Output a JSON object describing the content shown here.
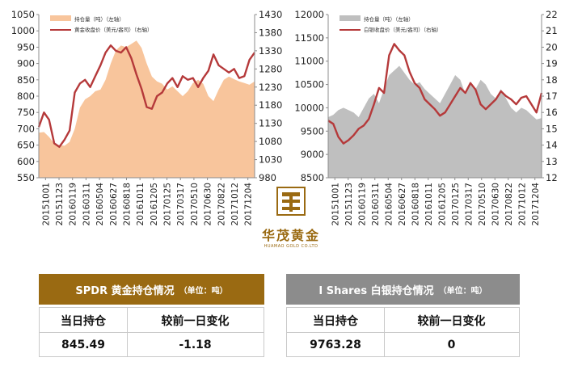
{
  "chart_data": [
    {
      "type": "area+line",
      "title": "",
      "legend": [
        "持仓量（吨）（左轴）",
        "黄金收盘价（美元/盎司）（右轴）"
      ],
      "legend_placement": "top-left",
      "x_ticks": [
        "20151001",
        "20151123",
        "20160119",
        "20160311",
        "20160504",
        "20160627",
        "20160818",
        "20161011",
        "20161205",
        "20170125",
        "20170317",
        "20170510",
        "20170630",
        "20170822",
        "20171012",
        "20171204"
      ],
      "left_axis": {
        "range": [
          550,
          1050
        ],
        "ticks": [
          550,
          600,
          650,
          700,
          750,
          800,
          850,
          900,
          950,
          1000,
          1050
        ]
      },
      "right_axis": {
        "range": [
          980,
          1430
        ],
        "ticks": [
          980,
          1030,
          1080,
          1130,
          1180,
          1230,
          1280,
          1330,
          1380,
          1430
        ]
      },
      "series": [
        {
          "name": "持仓量（吨）（左轴）",
          "axis": "left",
          "kind": "area",
          "color": "#f8c59c",
          "values": [
            688,
            690,
            675,
            655,
            650,
            648,
            660,
            700,
            765,
            790,
            800,
            815,
            820,
            850,
            900,
            940,
            955,
            950,
            960,
            970,
            948,
            900,
            860,
            845,
            838,
            820,
            830,
            815,
            800,
            815,
            840,
            850,
            838,
            800,
            785,
            820,
            850,
            860,
            852,
            845,
            840,
            835,
            845
          ]
        },
        {
          "name": "黄金收盘价（美元/盎司）（右轴）",
          "axis": "right",
          "kind": "line",
          "color": "#b5393a",
          "values": [
            1120,
            1160,
            1140,
            1075,
            1065,
            1085,
            1110,
            1215,
            1240,
            1250,
            1230,
            1260,
            1290,
            1325,
            1345,
            1330,
            1325,
            1340,
            1310,
            1265,
            1225,
            1175,
            1170,
            1205,
            1215,
            1240,
            1255,
            1230,
            1260,
            1250,
            1255,
            1230,
            1255,
            1275,
            1320,
            1290,
            1280,
            1270,
            1280,
            1255,
            1260,
            1305,
            1325
          ]
        }
      ]
    },
    {
      "type": "area+line",
      "title": "",
      "legend": [
        "持仓量（吨）（左轴）",
        "白银收盘价（美元/盎司）（右轴）"
      ],
      "legend_placement": "top-left",
      "x_ticks": [
        "20151001",
        "20151123",
        "20160119",
        "20160311",
        "20160504",
        "20160627",
        "20160818",
        "20161011",
        "20161205",
        "20170125",
        "20170317",
        "20170510",
        "20170630",
        "20170822",
        "20171012",
        "20171204"
      ],
      "left_axis": {
        "range": [
          8500,
          12000
        ],
        "ticks": [
          8500,
          9000,
          9500,
          10000,
          10500,
          11000,
          11500,
          12000
        ]
      },
      "right_axis": {
        "range": [
          12,
          22
        ],
        "ticks": [
          12,
          13,
          14,
          15,
          16,
          17,
          18,
          19,
          20,
          21,
          22
        ]
      },
      "series": [
        {
          "name": "持仓量（吨）（左轴）",
          "axis": "left",
          "kind": "area",
          "color": "#bfbfbf",
          "values": [
            9800,
            9850,
            9950,
            10000,
            9950,
            9900,
            9800,
            10000,
            10200,
            10300,
            10100,
            10400,
            10700,
            10800,
            10900,
            10750,
            10600,
            10500,
            10550,
            10400,
            10300,
            10200,
            10100,
            10300,
            10500,
            10700,
            10600,
            10300,
            10500,
            10400,
            10600,
            10500,
            10300,
            10200,
            10400,
            10200,
            10000,
            9900,
            10000,
            9950,
            9850,
            9750,
            9780
          ]
        },
        {
          "name": "白银收盘价（美元/盎司）（右轴）",
          "axis": "right",
          "kind": "line",
          "color": "#b5393a",
          "values": [
            15.5,
            15.3,
            14.5,
            14.1,
            14.3,
            14.6,
            15.0,
            15.2,
            15.6,
            16.5,
            17.5,
            17.2,
            19.5,
            20.2,
            19.8,
            19.5,
            18.5,
            17.8,
            17.5,
            16.8,
            16.5,
            16.2,
            15.8,
            16.0,
            16.5,
            17.0,
            17.5,
            17.2,
            17.8,
            17.4,
            16.5,
            16.2,
            16.5,
            16.8,
            17.3,
            17.0,
            16.8,
            16.5,
            16.9,
            17.0,
            16.5,
            16.0,
            17.2
          ]
        }
      ]
    }
  ],
  "tables": {
    "gold": {
      "title": "SPDR 黄金持仓情况",
      "unit": "（单位：吨）",
      "header_color": "#9a6a12",
      "col1": "当日持仓",
      "col2": "较前一日变化",
      "val1": "845.49",
      "val2": "-1.18"
    },
    "silver": {
      "title": "I Shares 白银持仓情况",
      "unit": "（单位：吨）",
      "header_color": "#8c8c8c",
      "col1": "当日持仓",
      "col2": "较前一日变化",
      "val1": "9763.28",
      "val2": "0"
    }
  },
  "logo": {
    "name": "华茂黄金",
    "sub": "HUAMAO GOLD CO.LTD"
  }
}
